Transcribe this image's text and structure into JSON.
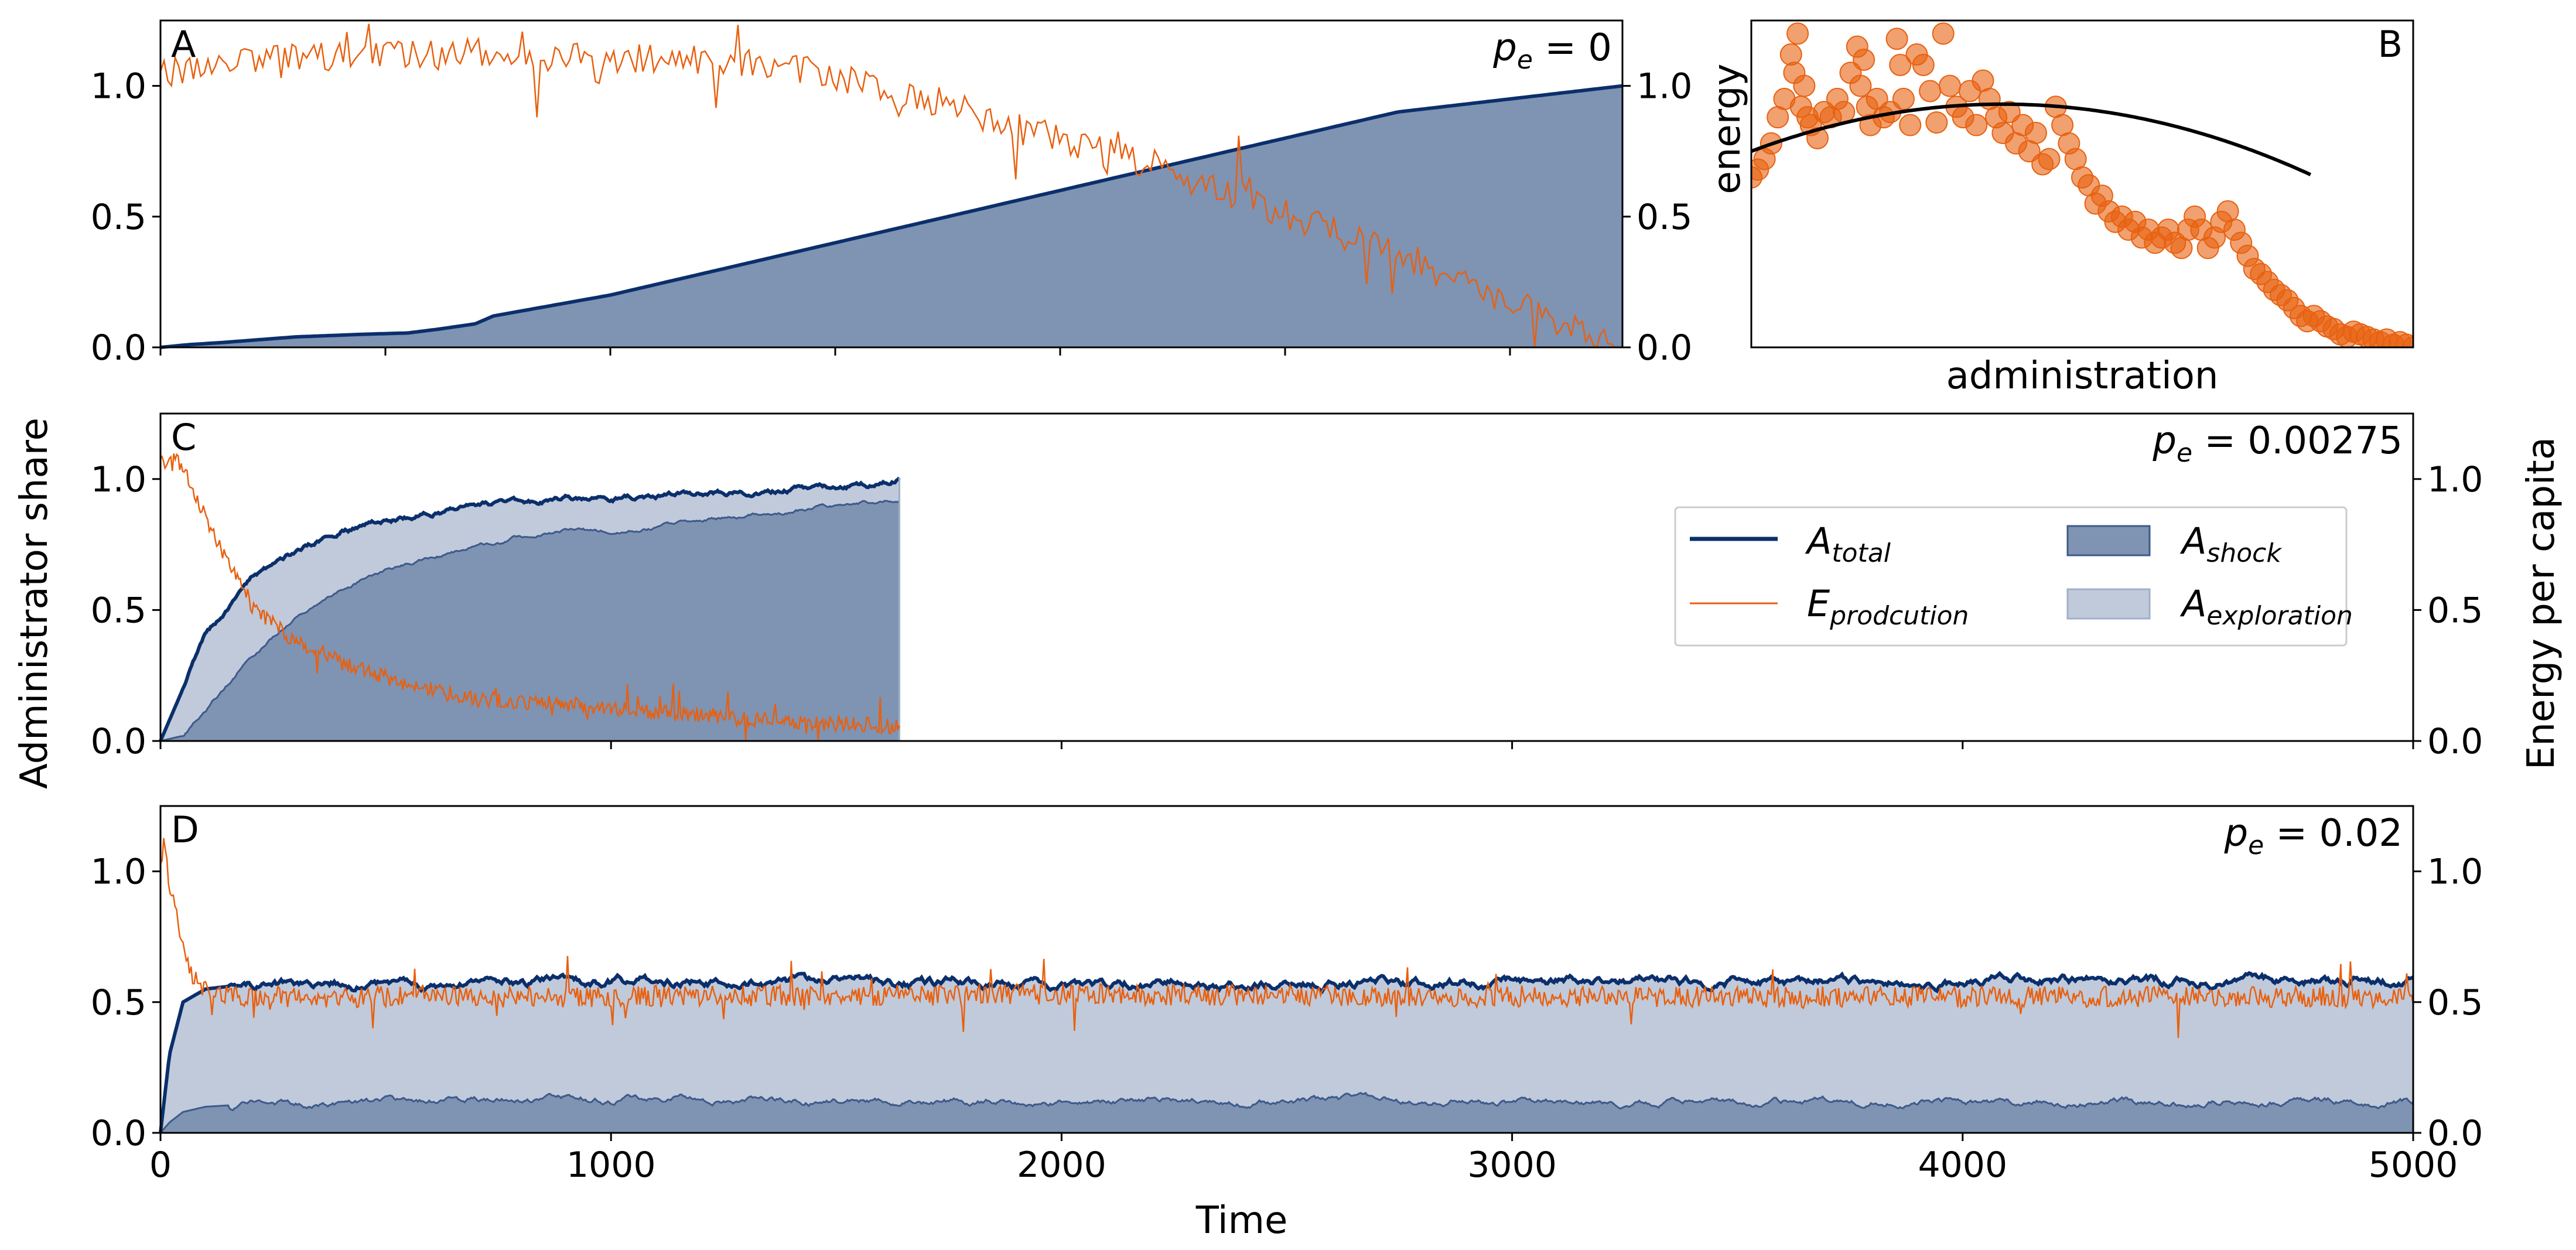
{
  "colors": {
    "navy": "#0b2f6b",
    "orange": "#e8600f",
    "shock": "#7f93b3",
    "exploration": "#c0cadb",
    "black": "#000000"
  },
  "labels": {
    "ylabel_left": "Administrator share",
    "ylabel_right": "Energy per capita",
    "xlabel": "Time",
    "b_xlabel": "administration",
    "b_ylabel": "energy"
  },
  "legend": {
    "total": {
      "base": "A",
      "sub": "total"
    },
    "production": {
      "base": "E",
      "sub": "prodcution"
    },
    "shock": {
      "base": "A",
      "sub": "shock"
    },
    "exploration": {
      "base": "A",
      "sub": "exploration"
    }
  },
  "chart_data": [
    {
      "panel": "A",
      "type": "area",
      "pe_text": "= 0",
      "xlim": [
        0,
        3250
      ],
      "ylim": [
        0,
        1.25
      ],
      "y_ticks": [
        "0.0",
        "0.5",
        "1.0"
      ],
      "y2_ticks": [
        "0.0",
        "0.5",
        "1.0"
      ],
      "series": [
        {
          "name": "A_total",
          "type": "line",
          "x": [
            0,
            60,
            150,
            300,
            450,
            550,
            620,
            700,
            740,
            1000,
            1500,
            2000,
            2500,
            2750,
            3000,
            3250
          ],
          "values": [
            0,
            0.01,
            0.02,
            0.04,
            0.05,
            0.055,
            0.07,
            0.09,
            0.12,
            0.2,
            0.4,
            0.6,
            0.8,
            0.9,
            0.95,
            1.0
          ]
        },
        {
          "name": "A_shock",
          "type": "area",
          "x": [
            0,
            60,
            150,
            300,
            450,
            550,
            620,
            700,
            740,
            1000,
            1500,
            2000,
            2500,
            2750,
            3000,
            3250
          ],
          "values": [
            0,
            0.01,
            0.02,
            0.04,
            0.05,
            0.055,
            0.07,
            0.09,
            0.12,
            0.2,
            0.4,
            0.6,
            0.8,
            0.9,
            0.95,
            1.0
          ]
        },
        {
          "name": "E_production",
          "type": "line",
          "x": [
            0,
            200,
            400,
            600,
            800,
            1000,
            1200,
            1400,
            1600,
            1800,
            2000,
            2200,
            2400,
            2600,
            2800,
            3000,
            3250
          ],
          "values": [
            1.05,
            1.1,
            1.12,
            1.12,
            1.12,
            1.11,
            1.1,
            1.07,
            1.0,
            0.9,
            0.8,
            0.7,
            0.58,
            0.45,
            0.32,
            0.18,
            0.0
          ]
        }
      ]
    },
    {
      "panel": "B",
      "type": "scatter",
      "xlabel": "administration",
      "ylabel": "energy",
      "xlim": [
        0,
        1
      ],
      "ylim": [
        0,
        1.25
      ],
      "points": [
        [
          0.0,
          0.65
        ],
        [
          0.01,
          0.68
        ],
        [
          0.02,
          0.72
        ],
        [
          0.03,
          0.78
        ],
        [
          0.04,
          0.88
        ],
        [
          0.05,
          0.95
        ],
        [
          0.06,
          1.12
        ],
        [
          0.065,
          1.05
        ],
        [
          0.07,
          1.2
        ],
        [
          0.075,
          0.92
        ],
        [
          0.08,
          1.0
        ],
        [
          0.085,
          0.88
        ],
        [
          0.09,
          0.85
        ],
        [
          0.1,
          0.8
        ],
        [
          0.11,
          0.9
        ],
        [
          0.12,
          0.88
        ],
        [
          0.13,
          0.95
        ],
        [
          0.14,
          0.9
        ],
        [
          0.15,
          1.05
        ],
        [
          0.16,
          1.15
        ],
        [
          0.165,
          1.0
        ],
        [
          0.17,
          1.1
        ],
        [
          0.175,
          0.92
        ],
        [
          0.18,
          0.85
        ],
        [
          0.19,
          0.95
        ],
        [
          0.2,
          0.88
        ],
        [
          0.21,
          0.9
        ],
        [
          0.22,
          1.18
        ],
        [
          0.225,
          1.08
        ],
        [
          0.23,
          0.95
        ],
        [
          0.24,
          0.85
        ],
        [
          0.25,
          1.12
        ],
        [
          0.26,
          1.08
        ],
        [
          0.27,
          0.98
        ],
        [
          0.28,
          0.86
        ],
        [
          0.29,
          1.2
        ],
        [
          0.3,
          1.0
        ],
        [
          0.31,
          0.92
        ],
        [
          0.32,
          0.88
        ],
        [
          0.33,
          0.98
        ],
        [
          0.34,
          0.85
        ],
        [
          0.35,
          1.02
        ],
        [
          0.36,
          0.95
        ],
        [
          0.37,
          0.88
        ],
        [
          0.38,
          0.82
        ],
        [
          0.39,
          0.9
        ],
        [
          0.4,
          0.78
        ],
        [
          0.41,
          0.85
        ],
        [
          0.42,
          0.75
        ],
        [
          0.43,
          0.82
        ],
        [
          0.44,
          0.7
        ],
        [
          0.45,
          0.72
        ],
        [
          0.46,
          0.92
        ],
        [
          0.47,
          0.85
        ],
        [
          0.48,
          0.78
        ],
        [
          0.49,
          0.72
        ],
        [
          0.5,
          0.65
        ],
        [
          0.51,
          0.62
        ],
        [
          0.52,
          0.55
        ],
        [
          0.53,
          0.58
        ],
        [
          0.54,
          0.52
        ],
        [
          0.55,
          0.48
        ],
        [
          0.56,
          0.5
        ],
        [
          0.57,
          0.45
        ],
        [
          0.58,
          0.48
        ],
        [
          0.59,
          0.42
        ],
        [
          0.6,
          0.45
        ],
        [
          0.61,
          0.4
        ],
        [
          0.62,
          0.42
        ],
        [
          0.63,
          0.45
        ],
        [
          0.64,
          0.4
        ],
        [
          0.65,
          0.38
        ],
        [
          0.66,
          0.45
        ],
        [
          0.67,
          0.5
        ],
        [
          0.68,
          0.45
        ],
        [
          0.69,
          0.38
        ],
        [
          0.7,
          0.42
        ],
        [
          0.71,
          0.48
        ],
        [
          0.72,
          0.52
        ],
        [
          0.73,
          0.45
        ],
        [
          0.74,
          0.4
        ],
        [
          0.75,
          0.35
        ],
        [
          0.76,
          0.3
        ],
        [
          0.77,
          0.28
        ],
        [
          0.78,
          0.25
        ],
        [
          0.79,
          0.22
        ],
        [
          0.8,
          0.2
        ],
        [
          0.81,
          0.18
        ],
        [
          0.82,
          0.15
        ],
        [
          0.83,
          0.12
        ],
        [
          0.84,
          0.1
        ],
        [
          0.85,
          0.12
        ],
        [
          0.86,
          0.1
        ],
        [
          0.87,
          0.08
        ],
        [
          0.88,
          0.07
        ],
        [
          0.89,
          0.05
        ],
        [
          0.9,
          0.04
        ],
        [
          0.91,
          0.06
        ],
        [
          0.92,
          0.05
        ],
        [
          0.93,
          0.04
        ],
        [
          0.94,
          0.03
        ],
        [
          0.95,
          0.02
        ],
        [
          0.96,
          0.03
        ],
        [
          0.97,
          0.01
        ],
        [
          0.98,
          0.02
        ],
        [
          0.99,
          0.01
        ],
        [
          1.0,
          0.0
        ]
      ],
      "fit": {
        "type": "parabola",
        "peak_x": 0.38,
        "peak_y": 0.93,
        "at_x0": 0.75,
        "zero_x": 0.845
      }
    },
    {
      "panel": "C",
      "type": "area",
      "pe_text": "= 0.00275",
      "xlim": [
        0,
        5000
      ],
      "ylim": [
        0,
        1.25
      ],
      "x_ticks": [
        0,
        1000,
        2000,
        3000,
        4000,
        5000
      ],
      "y_ticks": [
        "0.0",
        "0.5",
        "1.0"
      ],
      "y2_ticks": [
        "0.0",
        "0.5",
        "1.0"
      ],
      "series": [
        {
          "name": "A_total",
          "type": "line",
          "x": [
            0,
            50,
            100,
            200,
            300,
            400,
            500,
            600,
            700,
            800,
            900,
            1000,
            1100,
            1200,
            1300,
            1400,
            1500,
            1600,
            1640
          ],
          "values": [
            0,
            0.2,
            0.4,
            0.62,
            0.72,
            0.8,
            0.84,
            0.87,
            0.9,
            0.91,
            0.93,
            0.92,
            0.94,
            0.94,
            0.95,
            0.96,
            0.97,
            0.98,
            1.0
          ]
        },
        {
          "name": "A_shock",
          "type": "area",
          "x": [
            0,
            50,
            100,
            200,
            300,
            400,
            500,
            600,
            700,
            800,
            900,
            1000,
            1100,
            1200,
            1300,
            1400,
            1500,
            1600,
            1640
          ],
          "values": [
            0,
            0.02,
            0.12,
            0.32,
            0.48,
            0.58,
            0.65,
            0.7,
            0.74,
            0.78,
            0.8,
            0.8,
            0.82,
            0.84,
            0.86,
            0.88,
            0.9,
            0.92,
            0.93
          ]
        },
        {
          "name": "E_production",
          "type": "line",
          "x": [
            0,
            30,
            60,
            100,
            150,
            200,
            300,
            400,
            500,
            600,
            700,
            800,
            900,
            1000,
            1200,
            1400,
            1600,
            1640
          ],
          "values": [
            1.05,
            1.1,
            1.0,
            0.85,
            0.68,
            0.52,
            0.38,
            0.3,
            0.24,
            0.2,
            0.16,
            0.15,
            0.14,
            0.12,
            0.1,
            0.07,
            0.06,
            0.05
          ]
        }
      ]
    },
    {
      "panel": "D",
      "type": "area",
      "pe_text": "= 0.02",
      "xlim": [
        0,
        5000
      ],
      "ylim": [
        0,
        1.25
      ],
      "x_ticks": [
        0,
        1000,
        2000,
        3000,
        4000,
        5000
      ],
      "y_ticks": [
        "0.0",
        "0.5",
        "1.0"
      ],
      "y2_ticks": [
        "0.0",
        "0.5",
        "1.0"
      ],
      "series": [
        {
          "name": "A_total",
          "type": "line",
          "x": [
            0,
            20,
            50,
            100,
            200,
            500,
            1000,
            2000,
            3000,
            4000,
            5000
          ],
          "values": [
            0,
            0.3,
            0.5,
            0.55,
            0.57,
            0.57,
            0.58,
            0.57,
            0.58,
            0.58,
            0.58
          ]
        },
        {
          "name": "A_shock",
          "type": "area",
          "x": [
            0,
            20,
            50,
            100,
            200,
            500,
            1000,
            2000,
            3000,
            4000,
            5000
          ],
          "values": [
            0,
            0.04,
            0.08,
            0.1,
            0.11,
            0.12,
            0.13,
            0.12,
            0.12,
            0.12,
            0.12
          ]
        },
        {
          "name": "E_production",
          "type": "line",
          "x": [
            0,
            10,
            20,
            40,
            60,
            80,
            100,
            150,
            200,
            500,
            1000,
            2000,
            3000,
            4000,
            5000
          ],
          "values": [
            1.05,
            1.12,
            0.95,
            0.8,
            0.65,
            0.58,
            0.55,
            0.53,
            0.52,
            0.52,
            0.52,
            0.53,
            0.52,
            0.52,
            0.52
          ]
        }
      ]
    }
  ]
}
